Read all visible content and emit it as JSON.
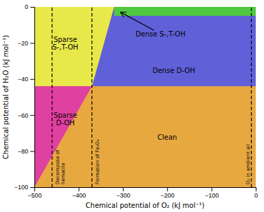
{
  "chart_data": {
    "type": "phase_diagram",
    "xlabel": "Chemical potential of O₂ (kJ mol⁻¹)",
    "ylabel": "Chemical potential of H₂O (kJ mol⁻¹)",
    "xlim": [
      -500,
      0
    ],
    "ylim": [
      -100,
      0
    ],
    "xticks": [
      -500,
      -400,
      -300,
      -200,
      -100,
      0
    ],
    "yticks": [
      -100,
      -80,
      -60,
      -40,
      -20,
      0
    ],
    "regions": [
      {
        "color": "#e8a840",
        "x": [
          -500,
          0,
          0,
          -500
        ],
        "y": [
          -100,
          -100,
          0,
          0
        ]
      },
      {
        "color": "#6060d8",
        "x": [
          -320,
          0,
          0,
          -370
        ],
        "y": [
          0,
          0,
          -44,
          -44
        ]
      },
      {
        "color": "#e8e84a",
        "x": [
          -500,
          -320,
          -370,
          -500
        ],
        "y": [
          0,
          0,
          -44,
          -44
        ]
      },
      {
        "color": "#e040a0",
        "x": [
          -500,
          -370,
          -500,
          -500
        ],
        "y": [
          -44,
          -44,
          -100,
          -100
        ]
      },
      {
        "color": "#50c840",
        "x": [
          -320,
          0,
          0,
          -320
        ],
        "y": [
          0,
          0,
          -5,
          -5
        ]
      }
    ],
    "vlines": [
      {
        "x": -460,
        "label": "Decompose of\nhematite",
        "color": "black",
        "line_style": "dashed"
      },
      {
        "x": -370,
        "label": "Formation of Fe₃O₄",
        "color": "black",
        "line_style": "dashed"
      },
      {
        "x": -10,
        "label": "O₂ in ambient air",
        "color": "black",
        "line_style": "dashed"
      }
    ],
    "annotations": [
      {
        "text": "Sparse\nS-,T-OH",
        "x": -430,
        "y": -20
      },
      {
        "text": "Dense S-,T-OH",
        "x": -215,
        "y": -15
      },
      {
        "text": "Dense D-OH",
        "x": -185,
        "y": -35
      },
      {
        "text": "Sparse\nD-OH",
        "x": -430,
        "y": -62
      },
      {
        "text": "Clean",
        "x": -200,
        "y": -72
      }
    ],
    "arrows": [
      {
        "x_tail": -230,
        "y_tail": -13,
        "x": -305,
        "y": -3
      }
    ]
  }
}
